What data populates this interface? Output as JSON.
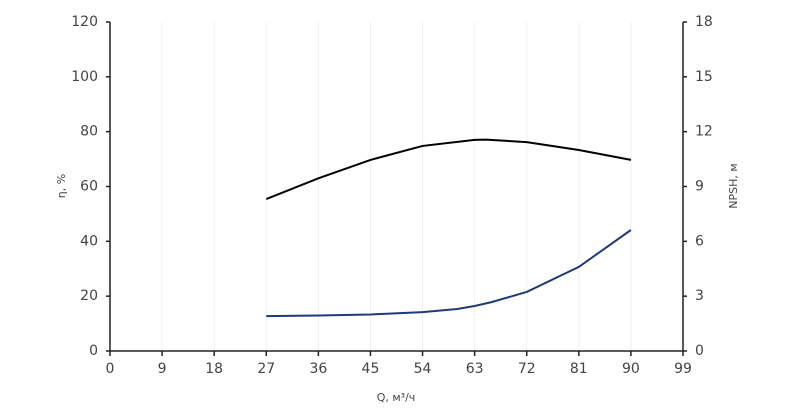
{
  "chart_data": {
    "type": "line",
    "x_label": "Q, м³/ч",
    "y_label": "η, %",
    "y2_label": "NPSH, м",
    "xlim": [
      0,
      99
    ],
    "xticks": [
      0,
      9,
      18,
      27,
      36,
      45,
      54,
      63,
      72,
      81,
      90,
      99
    ],
    "ylim": [
      0,
      120
    ],
    "yticks": [
      0,
      20,
      40,
      60,
      80,
      100,
      120
    ],
    "y2lim": [
      0,
      18
    ],
    "y2ticks": [
      0,
      3,
      6,
      9,
      12,
      15,
      18
    ],
    "grid": true,
    "series": [
      {
        "color": "#000000",
        "x": [
          27,
          36,
          45,
          54,
          63,
          65,
          72,
          81,
          90
        ],
        "values": [
          55.4,
          63,
          69.7,
          74.8,
          77,
          77.1,
          76.2,
          73.3,
          69.7
        ]
      },
      {
        "color": "#1f3a7a",
        "axis": "y2",
        "x": [
          27,
          36,
          45,
          54,
          60,
          63,
          66,
          72,
          81,
          90
        ],
        "values": [
          1.91,
          1.94,
          2.0,
          2.13,
          2.3,
          2.46,
          2.68,
          3.23,
          4.6,
          6.62
        ]
      }
    ]
  }
}
